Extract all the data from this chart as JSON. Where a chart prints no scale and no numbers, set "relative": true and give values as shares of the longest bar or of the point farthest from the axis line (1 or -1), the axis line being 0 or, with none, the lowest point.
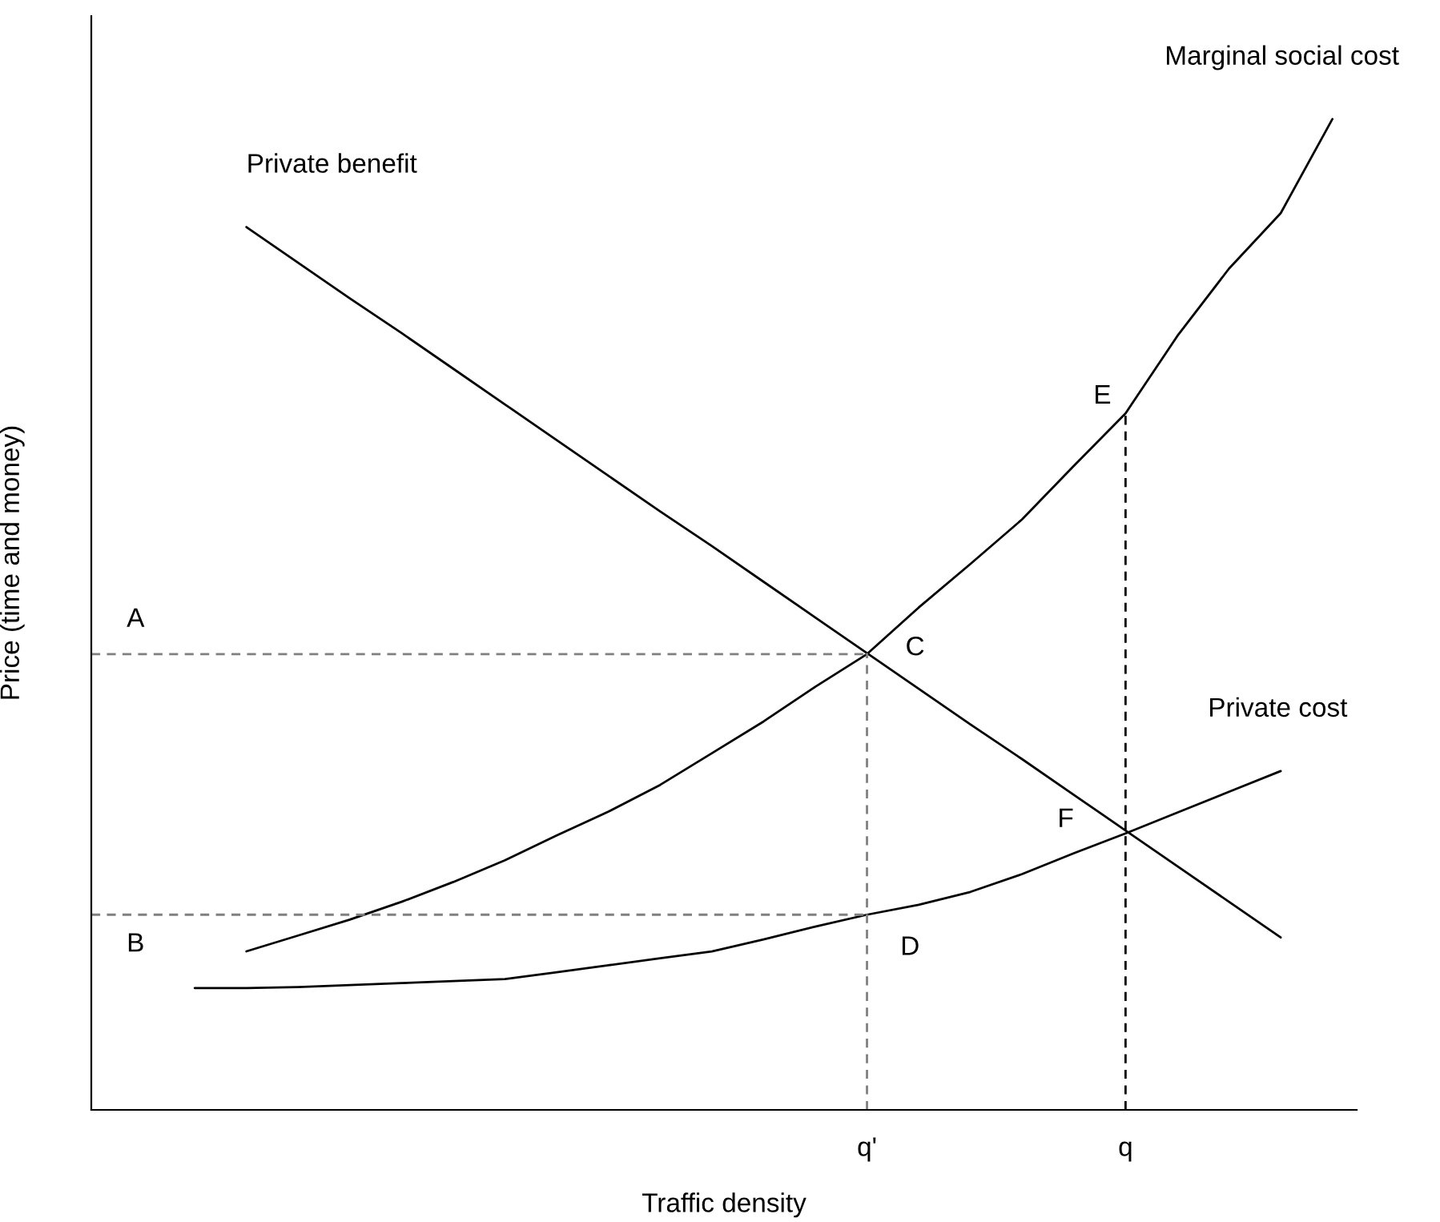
{
  "chart_data": {
    "type": "line",
    "relative": true,
    "xlabel": "Traffic density",
    "ylabel": "Price (time and money)",
    "grid": false,
    "legend": false,
    "marker": "none",
    "tick_labels": "x",
    "categories": [
      null,
      null,
      null,
      null,
      null,
      null,
      null,
      null,
      null,
      null,
      null,
      null,
      null,
      null,
      null,
      "q'",
      null,
      null,
      null,
      null,
      "q",
      null,
      null,
      null,
      null
    ],
    "series": [
      {
        "name": "Private benefit",
        "color": "#000000",
        "values": [
          null,
          null,
          null,
          0.891,
          0.855,
          0.819,
          0.784,
          0.748,
          0.712,
          0.676,
          0.64,
          0.604,
          0.569,
          0.533,
          0.497,
          0.461,
          0.425,
          0.389,
          0.354,
          0.318,
          0.282,
          0.246,
          0.21,
          0.174,
          null
        ]
      },
      {
        "name": "Marginal social cost",
        "color": "#000000",
        "values": [
          null,
          null,
          null,
          0.16,
          0.176,
          0.192,
          0.21,
          0.23,
          0.252,
          0.277,
          0.301,
          0.328,
          0.36,
          0.392,
          0.427,
          0.46,
          0.507,
          0.551,
          0.596,
          0.65,
          0.703,
          0.781,
          0.849,
          0.905,
          1.0
        ]
      },
      {
        "name": "Private cost",
        "color": "#000000",
        "values": [
          null,
          null,
          0.123,
          0.123,
          0.124,
          0.126,
          0.128,
          0.13,
          0.132,
          0.139,
          0.146,
          0.153,
          0.16,
          0.172,
          0.185,
          0.197,
          0.207,
          0.22,
          0.238,
          0.259,
          0.279,
          0.3,
          0.321,
          0.342,
          null
        ]
      },
      {
        "color": "#808080",
        "line_style": "dashed",
        "values": [
          0.46,
          0.46,
          0.46,
          0.46,
          0.46,
          0.46,
          0.46,
          0.46,
          0.46,
          0.46,
          0.46,
          0.46,
          0.46,
          0.46,
          0.46,
          0.46,
          null,
          null,
          null,
          null,
          null,
          null,
          null,
          null,
          null
        ]
      },
      {
        "color": "#808080",
        "line_style": "dashed",
        "values": [
          0.197,
          0.197,
          0.197,
          0.197,
          0.197,
          0.197,
          0.197,
          0.197,
          0.197,
          0.197,
          0.197,
          0.197,
          0.197,
          0.197,
          0.197,
          0.197,
          null,
          null,
          null,
          null,
          null,
          null,
          null,
          null,
          null
        ]
      }
    ],
    "ref_lines": [
      {
        "axis": "x",
        "value": "q'",
        "label": null,
        "color": "#808080",
        "line_style": "dashed"
      },
      {
        "axis": "x",
        "value": "q",
        "label": null,
        "color": "#000000",
        "line_style": "dashed"
      }
    ],
    "annotations": [
      "A",
      "B",
      "C",
      "D",
      "E",
      "F"
    ]
  }
}
